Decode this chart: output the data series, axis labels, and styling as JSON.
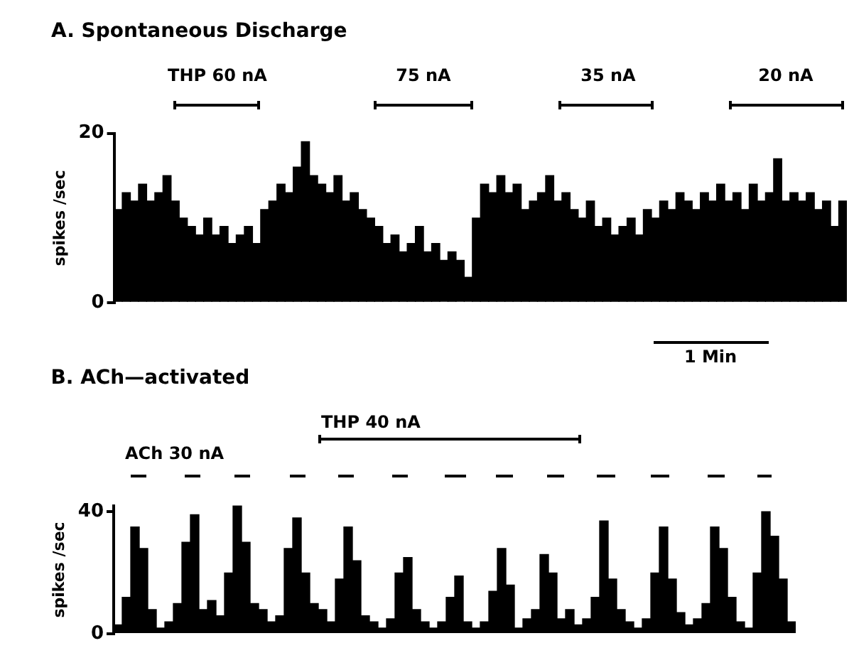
{
  "chart_data": [
    {
      "type": "bar",
      "title": "A. Spontaneous Discharge",
      "ylabel": "spikes /sec",
      "ylim": [
        0,
        20
      ],
      "yticks": [
        0,
        20
      ],
      "tick_labels": "y",
      "grid": false,
      "categories": [
        null,
        null,
        null,
        null,
        null,
        null,
        null,
        null,
        null,
        null,
        null,
        null,
        null,
        null,
        null,
        null,
        null,
        null,
        null,
        null,
        null,
        null,
        null,
        null,
        null,
        null,
        null,
        null,
        null,
        null,
        null,
        null,
        null,
        null,
        null,
        null,
        null,
        null,
        null,
        null,
        null,
        null,
        null,
        null,
        null,
        null,
        null,
        null,
        null,
        null,
        null,
        null,
        null,
        null,
        null,
        null,
        null,
        null,
        null,
        null,
        null,
        null,
        null,
        null,
        null,
        null,
        null,
        null,
        null,
        null,
        null,
        null,
        null,
        null,
        null,
        null,
        null,
        null,
        null,
        null,
        null,
        null,
        null,
        null,
        null,
        null,
        null,
        null,
        null,
        null
      ],
      "series": [
        {
          "color": "#000000",
          "values": [
            11,
            13,
            12,
            14,
            12,
            13,
            15,
            12,
            10,
            9,
            8,
            10,
            8,
            9,
            7,
            8,
            9,
            7,
            11,
            12,
            14,
            13,
            16,
            19,
            15,
            14,
            13,
            15,
            12,
            13,
            11,
            10,
            9,
            7,
            8,
            6,
            7,
            9,
            6,
            7,
            5,
            6,
            5,
            3,
            10,
            14,
            13,
            15,
            13,
            14,
            11,
            12,
            13,
            15,
            12,
            13,
            11,
            10,
            12,
            9,
            10,
            8,
            9,
            10,
            8,
            11,
            10,
            12,
            11,
            13,
            12,
            11,
            13,
            12,
            14,
            12,
            13,
            11,
            14,
            12,
            13,
            17,
            12,
            13,
            12,
            13,
            11,
            12,
            9,
            12
          ]
        }
      ],
      "annotations": [
        "THP 60 nA",
        "75 nA",
        "35 nA",
        "20 nA",
        "1 Min"
      ]
    },
    {
      "type": "bar",
      "title": "B. ACh—activated",
      "ylabel": "spikes /sec",
      "ylim": [
        0,
        42
      ],
      "yticks": [
        0,
        40
      ],
      "tick_labels": "y",
      "grid": false,
      "categories": [
        null,
        null,
        null,
        null,
        null,
        null,
        null,
        null,
        null,
        null,
        null,
        null,
        null,
        null,
        null,
        null,
        null,
        null,
        null,
        null,
        null,
        null,
        null,
        null,
        null,
        null,
        null,
        null,
        null,
        null,
        null,
        null,
        null,
        null,
        null,
        null,
        null,
        null,
        null,
        null,
        null,
        null,
        null,
        null,
        null,
        null,
        null,
        null,
        null,
        null,
        null,
        null,
        null,
        null,
        null,
        null,
        null,
        null,
        null,
        null,
        null,
        null,
        null,
        null,
        null,
        null,
        null,
        null,
        null,
        null,
        null,
        null,
        null,
        null,
        null,
        null,
        null,
        null,
        null,
        null
      ],
      "series": [
        {
          "color": "#000000",
          "values": [
            3,
            12,
            35,
            28,
            8,
            2,
            4,
            10,
            30,
            39,
            8,
            11,
            6,
            20,
            42,
            30,
            10,
            8,
            4,
            6,
            28,
            38,
            20,
            10,
            8,
            4,
            18,
            35,
            24,
            6,
            4,
            2,
            5,
            20,
            25,
            8,
            4,
            2,
            4,
            12,
            19,
            4,
            2,
            4,
            14,
            28,
            16,
            2,
            5,
            8,
            26,
            20,
            5,
            8,
            3,
            5,
            12,
            37,
            18,
            8,
            4,
            2,
            5,
            20,
            35,
            18,
            7,
            3,
            5,
            10,
            35,
            28,
            12,
            4,
            2,
            20,
            40,
            32,
            18,
            4
          ]
        }
      ],
      "annotations": [
        "ACh 30 nA",
        "THP 40 nA"
      ]
    }
  ]
}
